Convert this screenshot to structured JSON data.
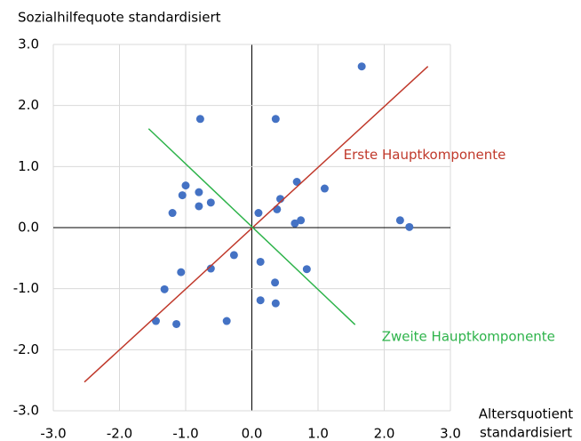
{
  "chart_data": {
    "type": "scatter",
    "ylabel": "Sozialhilfequote standardisiert",
    "xlabel": [
      "Altersquotient",
      "standardisiert"
    ],
    "xlim": [
      -3,
      3
    ],
    "ylim": [
      -3,
      3
    ],
    "xticks": [
      {
        "value": -3,
        "label": "-3.0"
      },
      {
        "value": -2,
        "label": "-2.0"
      },
      {
        "value": -1,
        "label": "-1.0"
      },
      {
        "value": 0,
        "label": "0.0"
      },
      {
        "value": 1,
        "label": "1.0"
      },
      {
        "value": 2,
        "label": "2.0"
      },
      {
        "value": 3,
        "label": "3.0"
      }
    ],
    "yticks": [
      {
        "value": -3,
        "label": "-3.0"
      },
      {
        "value": -2,
        "label": "-2.0"
      },
      {
        "value": -1,
        "label": "-1.0"
      },
      {
        "value": 0,
        "label": "0.0"
      },
      {
        "value": 1,
        "label": "1.0"
      },
      {
        "value": 2,
        "label": "2.0"
      },
      {
        "value": 3,
        "label": "3.0"
      }
    ],
    "grid": true,
    "color": "#4472c4",
    "x": [
      -0.78,
      0.36,
      1.66,
      -1.0,
      -1.05,
      -0.8,
      -0.8,
      -0.62,
      -1.2,
      0.1,
      0.43,
      0.38,
      0.68,
      1.1,
      0.65,
      0.74,
      2.24,
      2.38,
      -0.27,
      -0.62,
      -1.07,
      -1.32,
      0.13,
      0.35,
      0.83,
      0.13,
      0.36,
      -0.38,
      -1.14,
      -1.45
    ],
    "values": [
      1.78,
      1.78,
      2.64,
      0.69,
      0.53,
      0.58,
      0.35,
      0.41,
      0.24,
      0.24,
      0.47,
      0.3,
      0.75,
      0.64,
      0.07,
      0.12,
      0.12,
      0.01,
      -0.45,
      -0.67,
      -0.73,
      -1.01,
      -0.56,
      -0.9,
      -0.68,
      -1.19,
      -1.24,
      -1.53,
      -1.58,
      -1.53
    ],
    "series": [
      {
        "name": "Erste Hauptkomponente",
        "color": "#c0392b",
        "x": [
          -2.53,
          2.66
        ],
        "values": [
          -2.53,
          2.64
        ]
      },
      {
        "name": "Zweite Hauptkomponente",
        "color": "#2db34a",
        "x": [
          -1.56,
          1.56
        ],
        "values": [
          1.62,
          -1.59
        ]
      }
    ]
  }
}
